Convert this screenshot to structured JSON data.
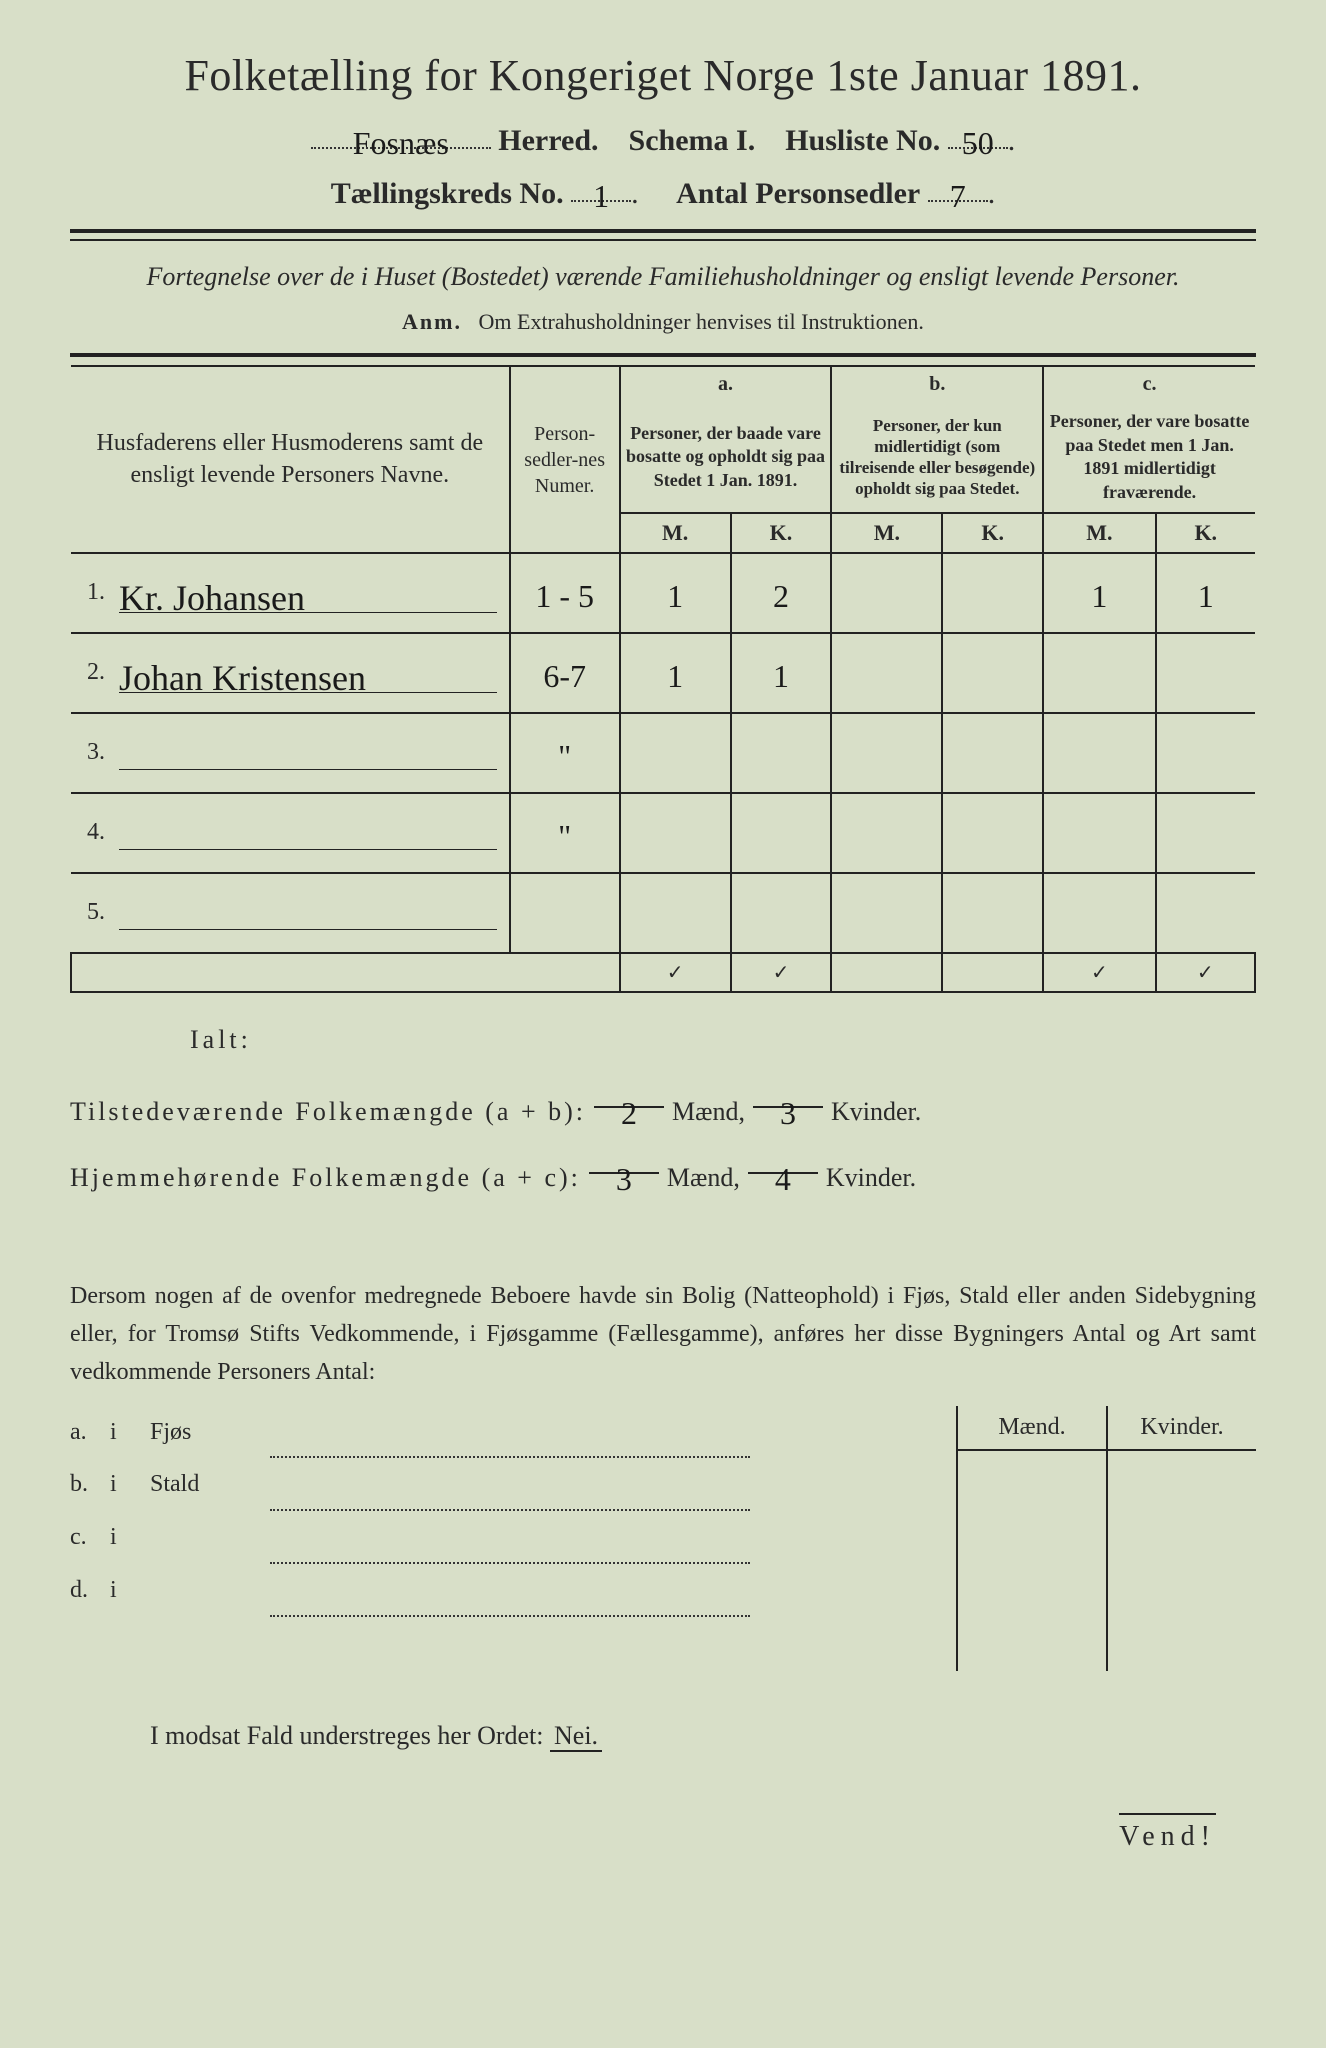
{
  "colors": {
    "background": "#d8dfc8",
    "ink": "#2a2a2a",
    "rule": "#222222"
  },
  "title": "Folketælling for Kongeriget Norge 1ste Januar 1891.",
  "header": {
    "herred_value": "Fosnæs",
    "herred_label": "Herred.",
    "schema_label": "Schema I.",
    "husliste_label": "Husliste No.",
    "husliste_value": "50",
    "kreds_label": "Tællingskreds No.",
    "kreds_value": "1",
    "antal_label": "Antal Personsedler",
    "antal_value": "7"
  },
  "subtitle": "Fortegnelse over de i Huset (Bostedet) værende Familiehusholdninger og ensligt levende Personer.",
  "anm": {
    "prefix": "Anm.",
    "text": "Om Extrahusholdninger henvises til Instruktionen."
  },
  "table": {
    "col_name": "Husfaderens eller Husmoderens samt de ensligt levende Personers Navne.",
    "col_numer": "Person-sedler-nes Numer.",
    "col_a_label": "a.",
    "col_a_text": "Personer, der baade vare bosatte og opholdt sig paa Stedet 1 Jan. 1891.",
    "col_b_label": "b.",
    "col_b_text": "Personer, der kun midlertidigt (som tilreisende eller besøgende) opholdt sig paa Stedet.",
    "col_c_label": "c.",
    "col_c_text": "Personer, der vare bosatte paa Stedet men 1 Jan. 1891 midlertidigt fraværende.",
    "mk_m": "M.",
    "mk_k": "K.",
    "rows": [
      {
        "num": "1.",
        "name": "Kr. Johansen",
        "numer": "1 - 5",
        "a_m": "1",
        "a_k": "2",
        "b_m": "",
        "b_k": "",
        "c_m": "1",
        "c_k": "1"
      },
      {
        "num": "2.",
        "name": "Johan Kristensen",
        "numer": "6-7",
        "a_m": "1",
        "a_k": "1",
        "b_m": "",
        "b_k": "",
        "c_m": "",
        "c_k": ""
      },
      {
        "num": "3.",
        "name": "",
        "numer": "\"",
        "a_m": "",
        "a_k": "",
        "b_m": "",
        "b_k": "",
        "c_m": "",
        "c_k": ""
      },
      {
        "num": "4.",
        "name": "",
        "numer": "\"",
        "a_m": "",
        "a_k": "",
        "b_m": "",
        "b_k": "",
        "c_m": "",
        "c_k": ""
      },
      {
        "num": "5.",
        "name": "",
        "numer": "",
        "a_m": "",
        "a_k": "",
        "b_m": "",
        "b_k": "",
        "c_m": "",
        "c_k": ""
      }
    ],
    "ticks": {
      "a_m": "✓",
      "a_k": "✓",
      "c_m": "✓",
      "c_k": "✓"
    }
  },
  "ialt": {
    "label": "Ialt:",
    "line1_label": "Tilstedeværende Folkemængde (a + b):",
    "line1_m": "2",
    "line1_k": "3",
    "line2_label": "Hjemmehørende Folkemængde (a + c):",
    "line2_m": "3",
    "line2_k": "4",
    "maend": "Mænd,",
    "kvinder": "Kvinder."
  },
  "paragraph": "Dersom nogen af de ovenfor medregnede Beboere havde sin Bolig (Natteophold) i Fjøs, Stald eller anden Sidebygning eller, for Tromsø Stifts Vedkommende, i Fjøsgamme (Fællesgamme), anføres her disse Bygningers Antal og Art samt vedkommende Personers Antal:",
  "side": {
    "maend": "Mænd.",
    "kvinder": "Kvinder.",
    "rows": [
      {
        "label": "a.",
        "i": "i",
        "text": "Fjøs"
      },
      {
        "label": "b.",
        "i": "i",
        "text": "Stald"
      },
      {
        "label": "c.",
        "i": "i",
        "text": ""
      },
      {
        "label": "d.",
        "i": "i",
        "text": ""
      }
    ]
  },
  "nei": {
    "text": "I modsat Fald understreges her Ordet:",
    "word": "Nei."
  },
  "vend": "Vend!"
}
